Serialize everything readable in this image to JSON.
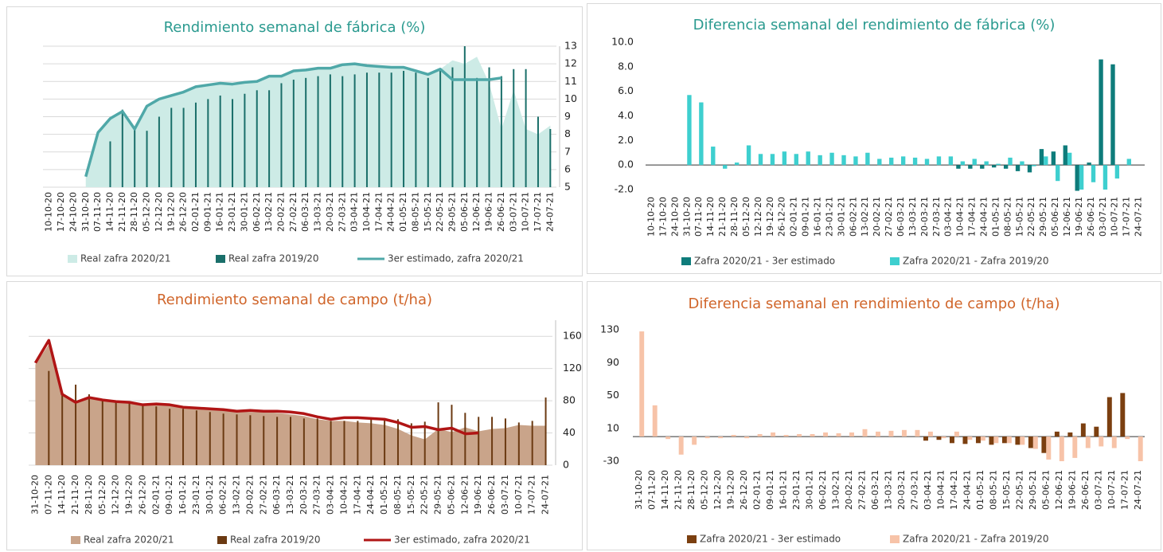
{
  "chart_data": [
    {
      "type": "combo",
      "title": "Rendimiento semanal de fábrica (%)",
      "title_color": "#2a9a8f",
      "y_axis_side": "right",
      "grid": true,
      "categories": [
        "10-10-20",
        "17-10-20",
        "24-10-20",
        "31-10-20",
        "07-11-20",
        "14-11-20",
        "21-11-20",
        "28-11-20",
        "05-12-20",
        "12-12-20",
        "19-12-20",
        "26-12-20",
        "02-01-21",
        "09-01-21",
        "16-01-21",
        "23-01-21",
        "30-01-21",
        "06-02-21",
        "13-02-21",
        "20-02-21",
        "27-02-21",
        "06-03-21",
        "13-03-21",
        "20-03-21",
        "27-03-21",
        "03-04-21",
        "10-04-21",
        "17-04-21",
        "24-04-21",
        "01-05-21",
        "08-05-21",
        "15-05-21",
        "22-05-21",
        "29-05-21",
        "05-06-21",
        "12-06-21",
        "19-06-21",
        "26-06-21",
        "03-07-21",
        "10-07-21",
        "17-07-21",
        "24-07-21"
      ],
      "ylim": [
        5,
        13
      ],
      "yticks": [
        5,
        6,
        7,
        8,
        9,
        10,
        11,
        12,
        13
      ],
      "series": [
        {
          "name": "Real zafra 2020/21",
          "type": "area",
          "color": "#cdebe6",
          "values": [
            null,
            null,
            null,
            5.6,
            8.1,
            8.9,
            9.3,
            8.3,
            9.6,
            10.0,
            10.2,
            10.4,
            10.7,
            10.8,
            10.9,
            10.85,
            10.95,
            11.0,
            11.3,
            11.3,
            11.6,
            11.65,
            11.75,
            11.75,
            11.95,
            12.0,
            11.9,
            11.85,
            11.8,
            11.8,
            11.6,
            11.4,
            11.7,
            12.2,
            12.0,
            12.4,
            10.9,
            8.3,
            10.5,
            8.3,
            8.0,
            8.5
          ]
        },
        {
          "name": "Real zafra 2019/20",
          "type": "bar",
          "color": "#1a6f6a",
          "values": [
            null,
            null,
            null,
            null,
            null,
            7.6,
            9.4,
            8.4,
            8.2,
            9.0,
            9.5,
            9.5,
            9.8,
            10.0,
            10.2,
            10.0,
            10.3,
            10.5,
            10.5,
            10.9,
            11.1,
            11.2,
            11.3,
            11.4,
            11.3,
            11.4,
            11.5,
            11.5,
            11.5,
            11.6,
            11.5,
            11.2,
            11.6,
            11.8,
            13.0,
            11.2,
            11.8,
            11.3,
            11.7,
            11.7,
            9.0,
            8.3
          ]
        },
        {
          "name": "3er estimado, zafra 2020/21",
          "type": "line",
          "color": "#4fa8a8",
          "values": [
            null,
            null,
            null,
            5.6,
            8.1,
            8.9,
            9.3,
            8.3,
            9.6,
            10.0,
            10.2,
            10.4,
            10.7,
            10.8,
            10.9,
            10.85,
            10.95,
            11.0,
            11.3,
            11.3,
            11.6,
            11.65,
            11.75,
            11.75,
            11.95,
            12.0,
            11.9,
            11.85,
            11.8,
            11.8,
            11.6,
            11.4,
            11.7,
            11.1,
            11.1,
            11.1,
            11.1,
            11.2,
            null,
            null,
            null,
            null
          ]
        }
      ]
    },
    {
      "type": "bar",
      "title": "Diferencia semanal del rendimiento de fábrica (%)",
      "title_color": "#2a9a8f",
      "y_axis_side": "left",
      "grid": false,
      "categories": [
        "10-10-20",
        "17-10-20",
        "24-10-20",
        "31-10-20",
        "07-11-20",
        "14-11-20",
        "21-11-20",
        "28-11-20",
        "05-12-20",
        "12-12-20",
        "19-12-20",
        "26-12-20",
        "02-01-21",
        "09-01-21",
        "16-01-21",
        "23-01-21",
        "30-01-21",
        "06-02-21",
        "13-02-21",
        "20-02-21",
        "27-02-21",
        "06-03-21",
        "13-03-21",
        "20-03-21",
        "27-03-21",
        "03-04-21",
        "10-04-21",
        "17-04-21",
        "24-04-21",
        "01-05-21",
        "08-05-21",
        "15-05-21",
        "22-05-21",
        "29-05-21",
        "05-06-21",
        "12-06-21",
        "19-06-21",
        "26-06-21",
        "03-07-21",
        "10-07-21",
        "17-07-21",
        "24-07-21"
      ],
      "ylim": [
        -2,
        10
      ],
      "yticks": [
        {
          "value": -2,
          "label": "-2.0"
        },
        {
          "value": 0,
          "label": "0.0"
        },
        {
          "value": 2,
          "label": "2.0"
        },
        {
          "value": 4,
          "label": "4.0"
        },
        {
          "value": 6,
          "label": "6.0"
        },
        {
          "value": 8,
          "label": "8.0"
        },
        {
          "value": 10,
          "label": "10.0"
        }
      ],
      "series": [
        {
          "name": "Zafra 2020/21 - 3er estimado",
          "color": "#0e7c7b",
          "values": [
            null,
            null,
            null,
            null,
            null,
            null,
            null,
            null,
            null,
            null,
            null,
            null,
            null,
            null,
            null,
            null,
            null,
            null,
            null,
            null,
            null,
            null,
            null,
            null,
            null,
            null,
            -0.3,
            -0.3,
            -0.3,
            -0.2,
            -0.3,
            -0.5,
            -0.6,
            1.3,
            1.1,
            1.6,
            -2.1,
            0.2,
            8.6,
            8.2,
            null,
            null
          ]
        },
        {
          "name": "Zafra 2020/21 - Zafra 2019/20",
          "color": "#3ecfcf",
          "values": [
            null,
            null,
            null,
            5.7,
            5.1,
            1.5,
            -0.3,
            0.2,
            1.6,
            0.9,
            0.9,
            1.1,
            0.9,
            1.1,
            0.8,
            1.0,
            0.8,
            0.7,
            1.0,
            0.5,
            0.6,
            0.7,
            0.6,
            0.5,
            0.7,
            0.7,
            0.3,
            0.5,
            0.3,
            0.1,
            0.6,
            0.3,
            -0.1,
            0.7,
            -1.3,
            1.0,
            -2.0,
            -1.4,
            -2.0,
            -1.1,
            0.5,
            null
          ]
        }
      ]
    },
    {
      "type": "combo",
      "title": "Rendimiento semanal de campo (t/ha)",
      "title_color": "#d0652a",
      "y_axis_side": "right",
      "grid": true,
      "categories": [
        "31-10-20",
        "07-11-20",
        "14-11-20",
        "21-11-20",
        "28-11-20",
        "05-12-20",
        "12-12-20",
        "19-12-20",
        "26-12-20",
        "02-01-21",
        "09-01-21",
        "16-01-21",
        "23-01-21",
        "30-01-21",
        "06-02-21",
        "13-02-21",
        "20-02-21",
        "27-02-21",
        "06-03-21",
        "13-03-21",
        "20-03-21",
        "27-03-21",
        "03-04-21",
        "10-04-21",
        "17-04-21",
        "24-04-21",
        "01-05-21",
        "08-05-21",
        "15-05-21",
        "22-05-21",
        "29-05-21",
        "05-06-21",
        "12-06-21",
        "19-06-21",
        "26-06-21",
        "03-07-21",
        "10-07-21",
        "17-07-21",
        "24-07-21"
      ],
      "ylim": [
        0,
        180
      ],
      "yticks": [
        0,
        40,
        80,
        120,
        160
      ],
      "series": [
        {
          "name": "Real zafra 2020/21",
          "type": "area",
          "color": "#c9a48a",
          "values": [
            125,
            150,
            88,
            78,
            83,
            80,
            78,
            78,
            75,
            75,
            74,
            72,
            71,
            70,
            68,
            67,
            66,
            66,
            65,
            63,
            61,
            57,
            55,
            55,
            53,
            52,
            50,
            45,
            37,
            32,
            45,
            41,
            47,
            42,
            45,
            46,
            50,
            49,
            49
          ]
        },
        {
          "name": "Real zafra 2019/20",
          "type": "bar",
          "color": "#6b3a12",
          "values": [
            null,
            117,
            90,
            100,
            88,
            80,
            80,
            78,
            75,
            73,
            70,
            70,
            68,
            66,
            64,
            63,
            62,
            61,
            60,
            60,
            58,
            58,
            55,
            55,
            55,
            57,
            58,
            57,
            52,
            54,
            78,
            75,
            65,
            60,
            60,
            58,
            53,
            55,
            84
          ]
        },
        {
          "name": "3er estimado, zafra 2020/21",
          "type": "line",
          "color": "#b01515",
          "values": [
            127,
            155,
            88,
            78,
            84,
            81,
            79,
            78,
            75,
            76,
            75,
            72,
            71,
            70,
            69,
            67,
            68,
            67,
            67,
            66,
            64,
            60,
            57,
            59,
            59,
            58,
            57,
            53,
            47,
            48,
            44,
            46,
            39,
            40,
            null,
            null,
            null,
            null,
            null
          ]
        }
      ]
    },
    {
      "type": "bar",
      "title": "Diferencia semanal en rendimiento de campo (t/ha)",
      "title_color": "#d0652a",
      "y_axis_side": "left",
      "grid": false,
      "categories": [
        "31-10-20",
        "07-11-20",
        "14-11-20",
        "21-11-20",
        "28-11-20",
        "05-12-20",
        "12-12-20",
        "19-12-20",
        "26-12-20",
        "02-01-21",
        "09-01-21",
        "16-01-21",
        "23-01-21",
        "30-01-21",
        "06-02-21",
        "13-02-21",
        "20-02-21",
        "27-02-21",
        "06-03-21",
        "13-03-21",
        "20-03-21",
        "27-03-21",
        "03-04-21",
        "10-04-21",
        "17-04-21",
        "24-04-21",
        "01-05-21",
        "08-05-21",
        "15-05-21",
        "22-05-21",
        "29-05-21",
        "05-06-21",
        "12-06-21",
        "19-06-21",
        "26-06-21",
        "03-07-21",
        "10-07-21",
        "17-07-21",
        "24-07-21"
      ],
      "ylim": [
        -30,
        130
      ],
      "yticks": [
        -30,
        10,
        50,
        90,
        130
      ],
      "series": [
        {
          "name": "Zafra 2020/21 - 3er estimado",
          "color": "#7b3f10",
          "values": [
            null,
            null,
            null,
            null,
            null,
            null,
            null,
            null,
            null,
            null,
            null,
            null,
            null,
            null,
            null,
            null,
            null,
            null,
            null,
            null,
            null,
            null,
            -5,
            -4,
            -8,
            -9,
            -8,
            -10,
            -8,
            -10,
            -14,
            -20,
            6,
            5,
            16,
            12,
            48,
            53,
            null
          ]
        },
        {
          "name": "Zafra 2020/21 - Zafra 2019/20",
          "color": "#f7c3a8",
          "values": [
            128,
            38,
            -3,
            -22,
            -10,
            -2,
            -2,
            2,
            -2,
            3,
            5,
            2,
            3,
            3,
            5,
            4,
            5,
            9,
            6,
            7,
            8,
            8,
            6,
            -2,
            6,
            -4,
            -5,
            -8,
            -8,
            -10,
            -15,
            -28,
            -30,
            -26,
            -14,
            -12,
            -14,
            -3,
            -30
          ]
        }
      ]
    }
  ]
}
